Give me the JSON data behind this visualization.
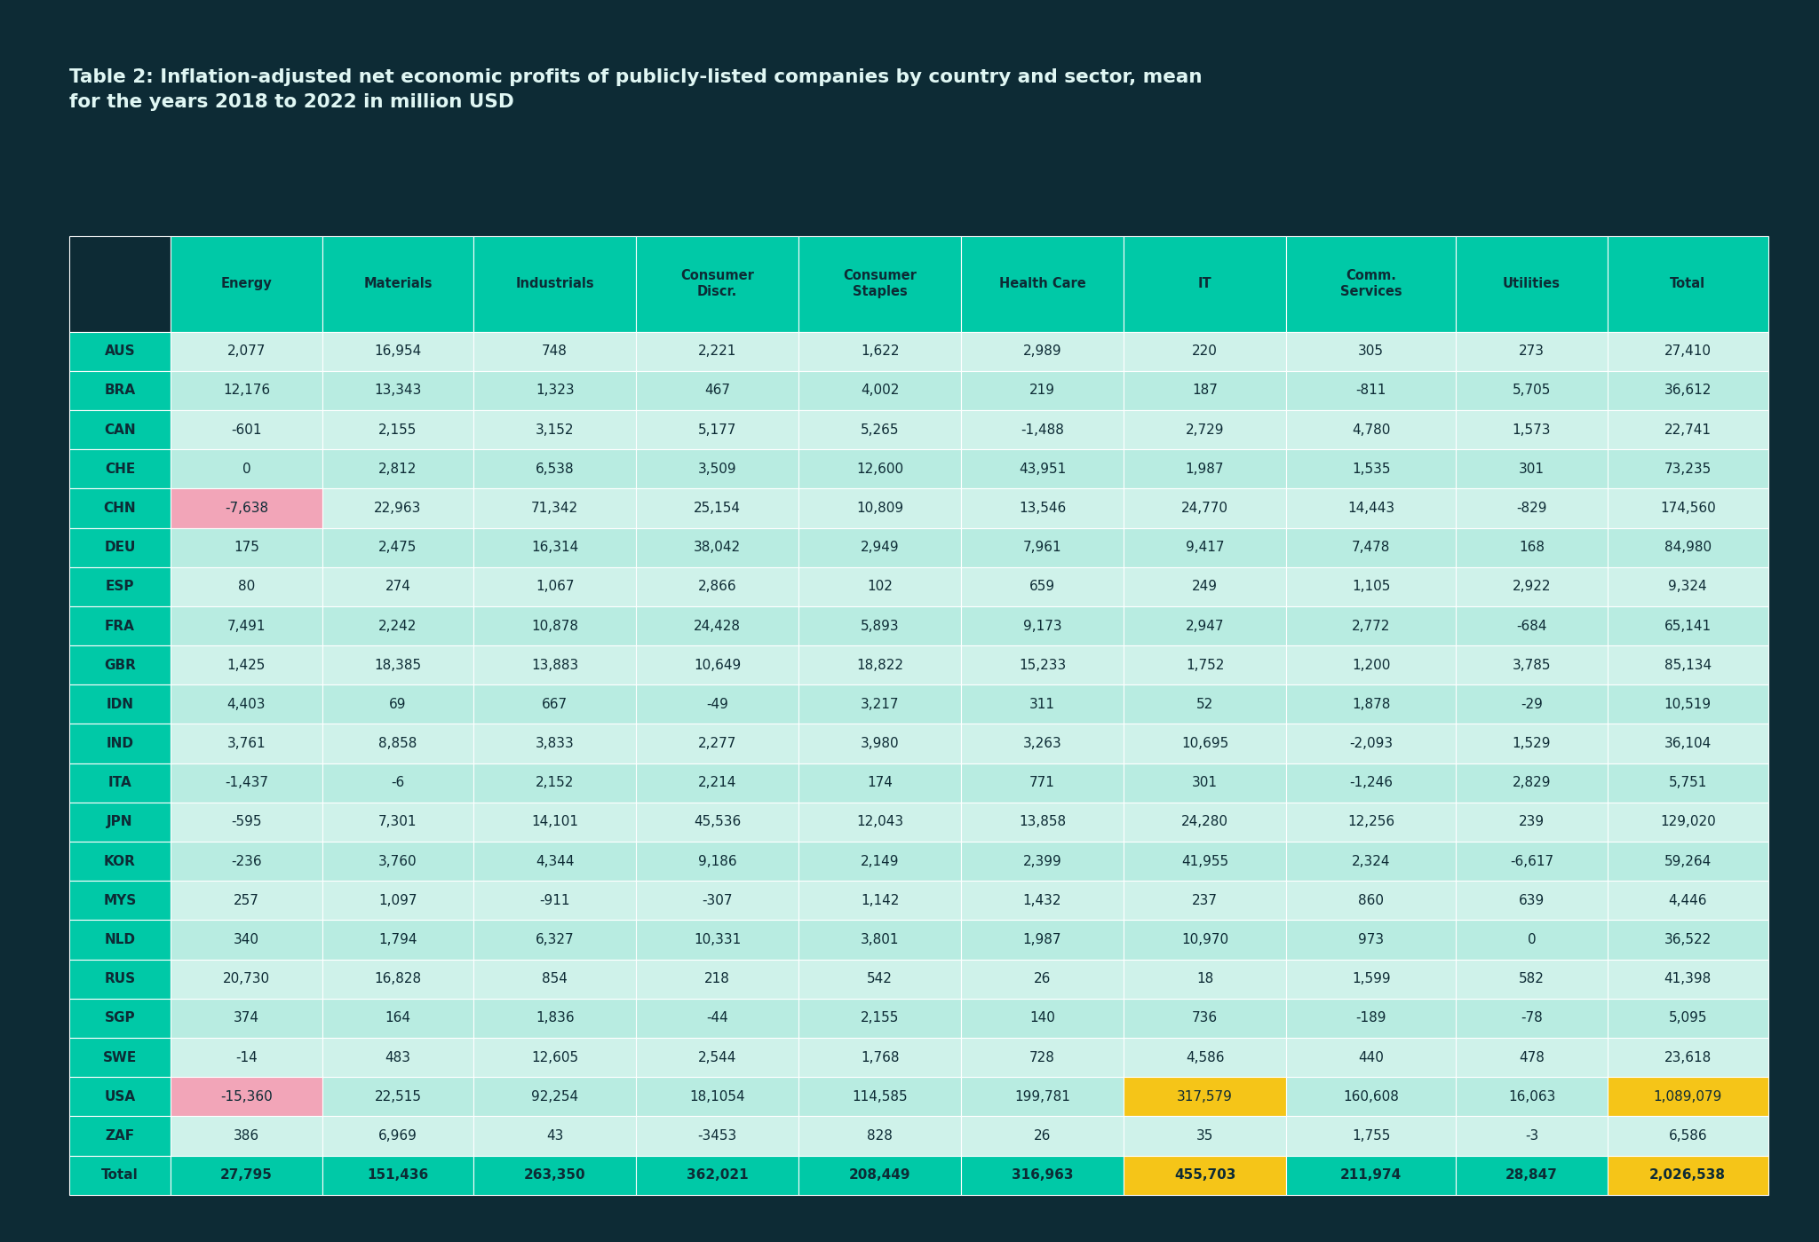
{
  "title": "Table 2: Inflation-adjusted net economic profits of publicly-listed companies by country and sector, mean\nfor the years 2018 to 2022 in million USD",
  "columns": [
    "",
    "Energy",
    "Materials",
    "Industrials",
    "Consumer\nDiscr.",
    "Consumer\nStaples",
    "Health Care",
    "IT",
    "Comm.\nServices",
    "Utilities",
    "Total"
  ],
  "rows": [
    [
      "AUS",
      "2,077",
      "16,954",
      "748",
      "2,221",
      "1,622",
      "2,989",
      "220",
      "305",
      "273",
      "27,410"
    ],
    [
      "BRA",
      "12,176",
      "13,343",
      "1,323",
      "467",
      "4,002",
      "219",
      "187",
      "-811",
      "5,705",
      "36,612"
    ],
    [
      "CAN",
      "-601",
      "2,155",
      "3,152",
      "5,177",
      "5,265",
      "-1,488",
      "2,729",
      "4,780",
      "1,573",
      "22,741"
    ],
    [
      "CHE",
      "0",
      "2,812",
      "6,538",
      "3,509",
      "12,600",
      "43,951",
      "1,987",
      "1,535",
      "301",
      "73,235"
    ],
    [
      "CHN",
      "-7,638",
      "22,963",
      "71,342",
      "25,154",
      "10,809",
      "13,546",
      "24,770",
      "14,443",
      "-829",
      "174,560"
    ],
    [
      "DEU",
      "175",
      "2,475",
      "16,314",
      "38,042",
      "2,949",
      "7,961",
      "9,417",
      "7,478",
      "168",
      "84,980"
    ],
    [
      "ESP",
      "80",
      "274",
      "1,067",
      "2,866",
      "102",
      "659",
      "249",
      "1,105",
      "2,922",
      "9,324"
    ],
    [
      "FRA",
      "7,491",
      "2,242",
      "10,878",
      "24,428",
      "5,893",
      "9,173",
      "2,947",
      "2,772",
      "-684",
      "65,141"
    ],
    [
      "GBR",
      "1,425",
      "18,385",
      "13,883",
      "10,649",
      "18,822",
      "15,233",
      "1,752",
      "1,200",
      "3,785",
      "85,134"
    ],
    [
      "IDN",
      "4,403",
      "69",
      "667",
      "-49",
      "3,217",
      "311",
      "52",
      "1,878",
      "-29",
      "10,519"
    ],
    [
      "IND",
      "3,761",
      "8,858",
      "3,833",
      "2,277",
      "3,980",
      "3,263",
      "10,695",
      "-2,093",
      "1,529",
      "36,104"
    ],
    [
      "ITA",
      "-1,437",
      "-6",
      "2,152",
      "2,214",
      "174",
      "771",
      "301",
      "-1,246",
      "2,829",
      "5,751"
    ],
    [
      "JPN",
      "-595",
      "7,301",
      "14,101",
      "45,536",
      "12,043",
      "13,858",
      "24,280",
      "12,256",
      "239",
      "129,020"
    ],
    [
      "KOR",
      "-236",
      "3,760",
      "4,344",
      "9,186",
      "2,149",
      "2,399",
      "41,955",
      "2,324",
      "-6,617",
      "59,264"
    ],
    [
      "MYS",
      "257",
      "1,097",
      "-911",
      "-307",
      "1,142",
      "1,432",
      "237",
      "860",
      "639",
      "4,446"
    ],
    [
      "NLD",
      "340",
      "1,794",
      "6,327",
      "10,331",
      "3,801",
      "1,987",
      "10,970",
      "973",
      "0",
      "36,522"
    ],
    [
      "RUS",
      "20,730",
      "16,828",
      "854",
      "218",
      "542",
      "26",
      "18",
      "1,599",
      "582",
      "41,398"
    ],
    [
      "SGP",
      "374",
      "164",
      "1,836",
      "-44",
      "2,155",
      "140",
      "736",
      "-189",
      "-78",
      "5,095"
    ],
    [
      "SWE",
      "-14",
      "483",
      "12,605",
      "2,544",
      "1,768",
      "728",
      "4,586",
      "440",
      "478",
      "23,618"
    ],
    [
      "USA",
      "-15,360",
      "22,515",
      "92,254",
      "18,1054",
      "114,585",
      "199,781",
      "317,579",
      "160,608",
      "16,063",
      "1,089,079"
    ],
    [
      "ZAF",
      "386",
      "6,969",
      "43",
      "-3453",
      "828",
      "26",
      "35",
      "1,755",
      "-3",
      "6,586"
    ],
    [
      "Total",
      "27,795",
      "151,436",
      "263,350",
      "362,021",
      "208,449",
      "316,963",
      "455,703",
      "211,974",
      "28,847",
      "2,026,538"
    ]
  ],
  "bg_color": "#0d2b35",
  "header_bg": "#00c9a7",
  "header_text": "#0d2b35",
  "row_label_bg": "#00c9a7",
  "row_label_text": "#0d2b35",
  "cell_bg_even": "#cff2ea",
  "cell_bg_odd": "#b8ece1",
  "cell_text": "#0d2b35",
  "title_text": "#e0f7f4",
  "highlight_pink": "#f2a5b8",
  "highlight_gold": "#f5c518",
  "col_props": [
    0.055,
    0.082,
    0.082,
    0.088,
    0.088,
    0.088,
    0.088,
    0.088,
    0.092,
    0.082,
    0.087
  ],
  "special_cells": {
    "4,1": "#f2a5b8",
    "19,1": "#f2a5b8",
    "19,7": "#f5c518",
    "19,10": "#f5c518",
    "21,7": "#f5c518",
    "21,10": "#f5c518"
  }
}
